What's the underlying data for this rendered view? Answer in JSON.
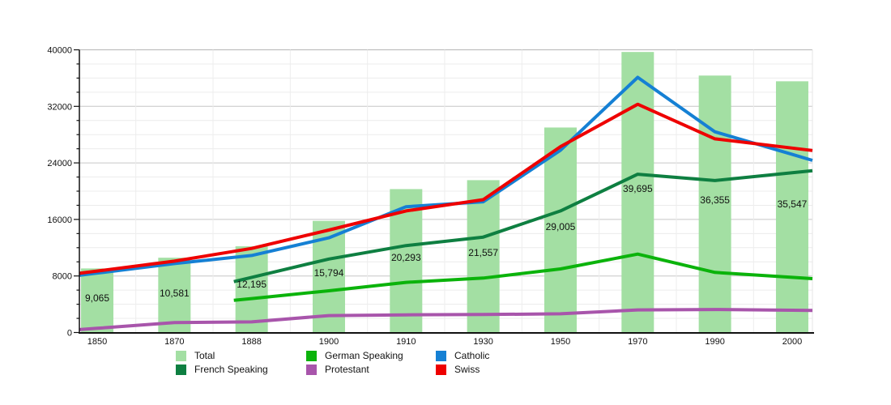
{
  "chart_data": {
    "type": "bar+line",
    "title": "",
    "xlabel": "",
    "ylabel": "",
    "categories": [
      "1850",
      "1870",
      "1888",
      "1900",
      "1910",
      "1930",
      "1950",
      "1970",
      "1990",
      "2000"
    ],
    "y_axis": {
      "min": 0,
      "max": 40000,
      "major_step": 8000,
      "minor_step": 2000,
      "tick_labels": [
        "0",
        "8000",
        "16000",
        "24000",
        "32000",
        "40000"
      ]
    },
    "grid": "on",
    "bar_series": {
      "name": "Total",
      "color": "#a3dfa3",
      "values": [
        9065,
        10581,
        12195,
        15794,
        20293,
        21557,
        29005,
        39695,
        36355,
        35547
      ],
      "value_labels": [
        "9,065",
        "10,581",
        "12,195",
        "15,794",
        "20,293",
        "21,557",
        "29,005",
        "39,695",
        "36,355",
        "35,547"
      ]
    },
    "line_series": [
      {
        "name": "French Speaking",
        "color": "#0e7f41",
        "values": [
          null,
          null,
          7800,
          10400,
          12300,
          13500,
          17200,
          22400,
          21500,
          22600
        ]
      },
      {
        "name": "German Speaking",
        "color": "#0bb30b",
        "values": [
          null,
          null,
          4800,
          5900,
          7100,
          7700,
          9000,
          11100,
          8500,
          7800
        ]
      },
      {
        "name": "Protestant",
        "color": "#a855ab",
        "values": [
          600,
          1400,
          1500,
          2400,
          2500,
          2550,
          2650,
          3200,
          3250,
          3150
        ]
      },
      {
        "name": "Catholic",
        "color": "#1580d4",
        "values": [
          8400,
          9750,
          10900,
          13400,
          17800,
          18500,
          25800,
          36100,
          28400,
          25200
        ]
      },
      {
        "name": "Swiss",
        "color": "#ee0000",
        "values": [
          8700,
          10100,
          11900,
          14500,
          17200,
          18800,
          26300,
          32300,
          27400,
          26100
        ]
      }
    ],
    "legend": {
      "position": "bottom",
      "entries": [
        {
          "label": "Total",
          "color": "#a3dfa3"
        },
        {
          "label": "French Speaking",
          "color": "#0e7f41"
        },
        {
          "label": "German Speaking",
          "color": "#0bb30b"
        },
        {
          "label": "Protestant",
          "color": "#a855ab"
        },
        {
          "label": "Catholic",
          "color": "#1580d4"
        },
        {
          "label": "Swiss",
          "color": "#ee0000"
        }
      ]
    }
  }
}
